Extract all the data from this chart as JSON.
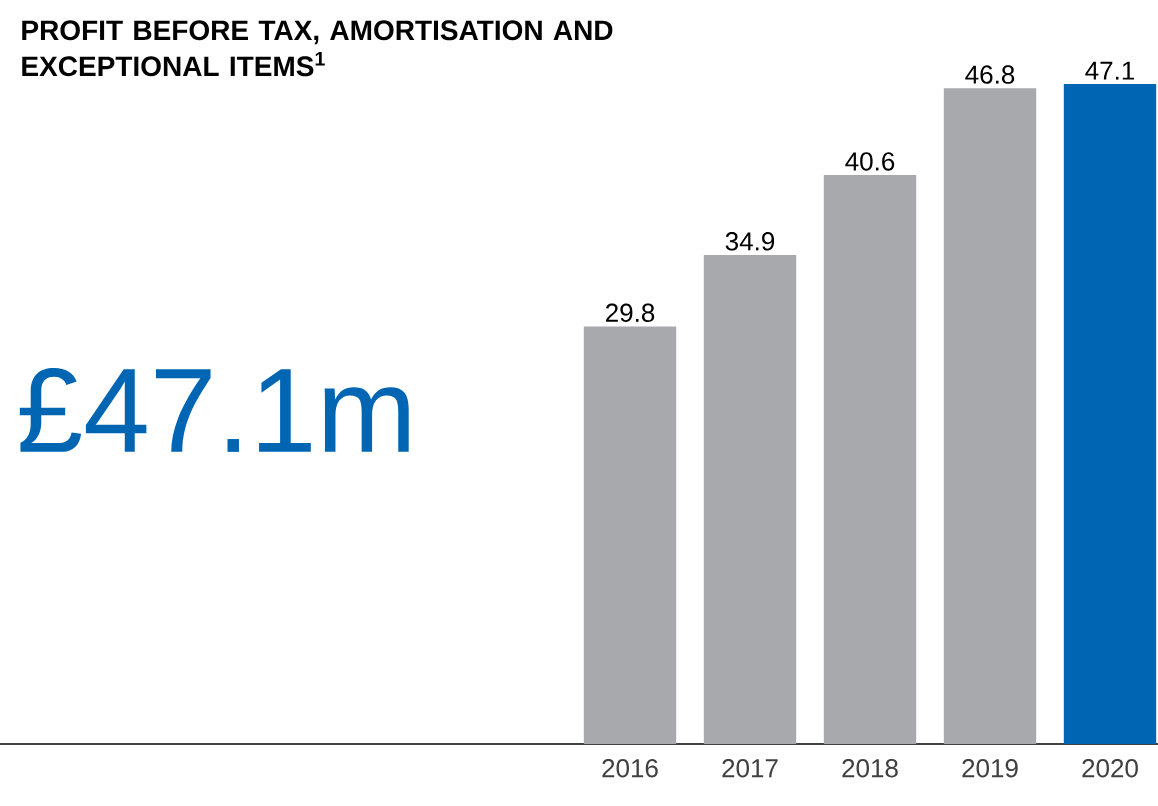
{
  "chart_data": {
    "type": "bar",
    "title": "PROFIT BEFORE TAX, AMORTISATION AND EXCEPTIONAL ITEMS$^{1}$",
    "annotations": [
      "£47.1m"
    ],
    "categories": [
      "2016",
      "2017",
      "2018",
      "2019",
      "2020"
    ],
    "values": [
      29.8,
      34.9,
      40.6,
      46.8,
      47.1
    ],
    "colors": [
      "#a7a9ac",
      "#a7a9ac",
      "#a7a9ac",
      "#a7a9ac",
      "#0066b3"
    ],
    "data_labels": true
  }
}
